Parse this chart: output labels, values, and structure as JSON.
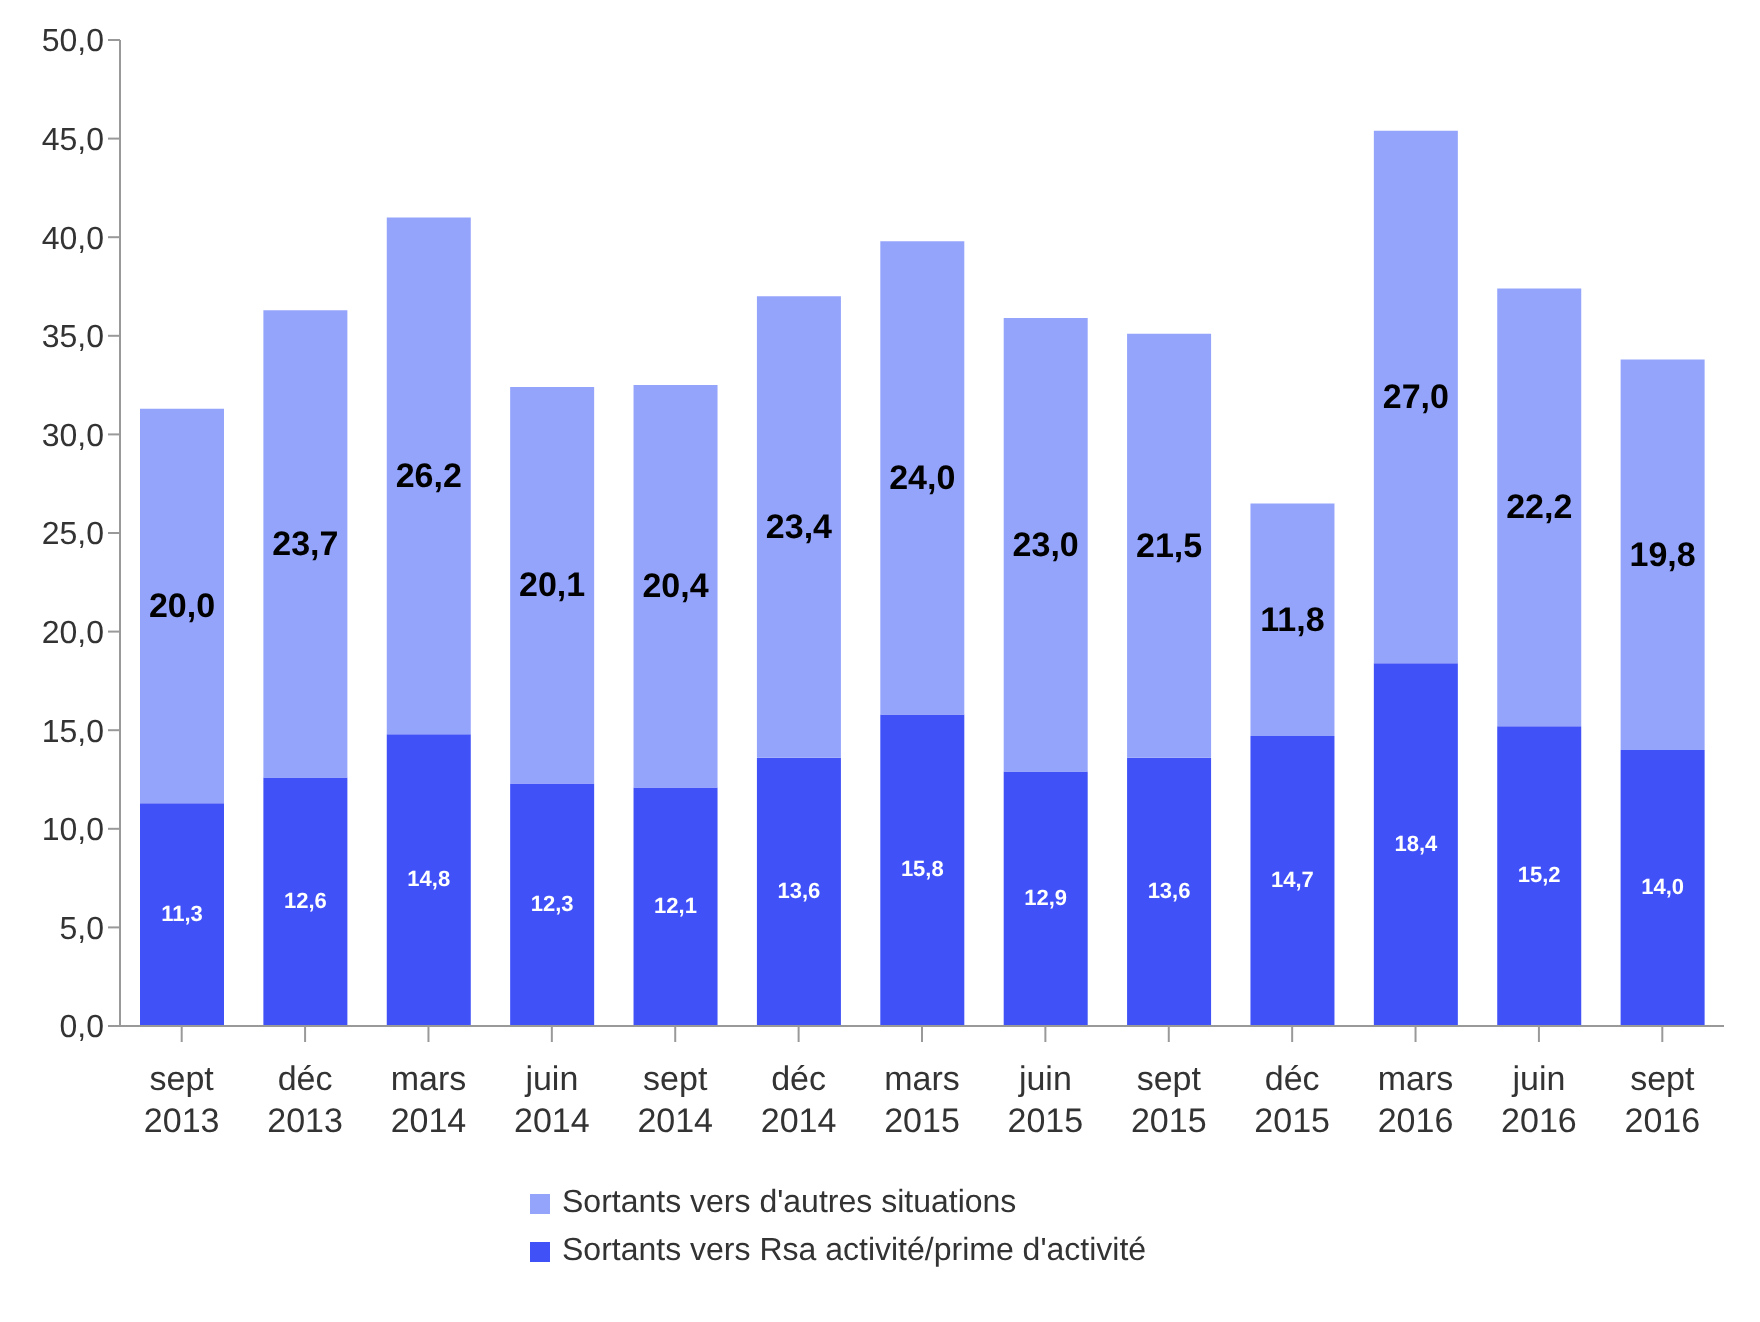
{
  "chart_data": {
    "type": "bar",
    "stacked": true,
    "categories": [
      "sept 2013",
      "déc 2013",
      "mars 2014",
      "juin 2014",
      "sept 2014",
      "déc 2014",
      "mars 2015",
      "juin 2015",
      "sept 2015",
      "déc 2015",
      "mars 2016",
      "juin 2016",
      "sept 2016"
    ],
    "series": [
      {
        "name": "Sortants vers Rsa activité/prime d'activité",
        "color": "#3f51f7",
        "values": [
          11.3,
          12.6,
          14.8,
          12.3,
          12.1,
          13.6,
          15.8,
          12.9,
          13.6,
          14.7,
          18.4,
          15.2,
          14.0
        ],
        "value_labels": [
          "11,3",
          "12,6",
          "14,8",
          "12,3",
          "12,1",
          "13,6",
          "15,8",
          "12,9",
          "13,6",
          "14,7",
          "18,4",
          "15,2",
          "14,0"
        ]
      },
      {
        "name": "Sortants vers d'autres situations",
        "color": "#94a4fb",
        "values": [
          20.0,
          23.7,
          26.2,
          20.1,
          20.4,
          23.4,
          24.0,
          23.0,
          21.5,
          11.8,
          27.0,
          22.2,
          19.8
        ],
        "value_labels": [
          "20,0",
          "23,7",
          "26,2",
          "20,1",
          "20,4",
          "23,4",
          "24,0",
          "23,0",
          "21,5",
          "11,8",
          "27,0",
          "22,2",
          "19,8"
        ]
      }
    ],
    "ylim": [
      0,
      50
    ],
    "yticks": [
      {
        "value": 0,
        "label": "0,0"
      },
      {
        "value": 5,
        "label": "5,0"
      },
      {
        "value": 10,
        "label": "10,0"
      },
      {
        "value": 15,
        "label": "15,0"
      },
      {
        "value": 20,
        "label": "20,0"
      },
      {
        "value": 25,
        "label": "25,0"
      },
      {
        "value": 30,
        "label": "30,0"
      },
      {
        "value": 35,
        "label": "35,0"
      },
      {
        "value": 40,
        "label": "40,0"
      },
      {
        "value": 45,
        "label": "45,0"
      },
      {
        "value": 50,
        "label": "50,0"
      }
    ],
    "grid": false,
    "legend": "bottom"
  }
}
